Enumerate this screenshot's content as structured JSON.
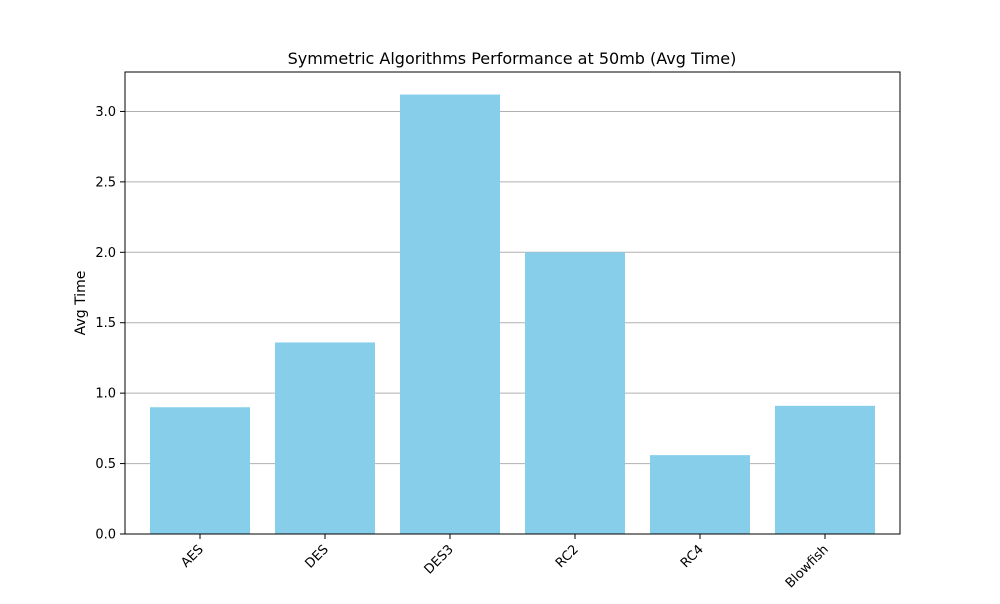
{
  "chart_data": {
    "type": "bar",
    "title": "Symmetric Algorithms Performance at 50mb (Avg Time)",
    "xlabel": "",
    "ylabel": "Avg Time",
    "categories": [
      "AES",
      "DES",
      "DES3",
      "RC2",
      "RC4",
      "Blowfish"
    ],
    "values": [
      0.9,
      1.36,
      3.12,
      2.0,
      0.56,
      0.91
    ],
    "ylim": [
      0,
      3.28
    ],
    "yticks": [
      0.0,
      0.5,
      1.0,
      1.5,
      2.0,
      2.5,
      3.0
    ],
    "ytick_labels": [
      "0.0",
      "0.5",
      "1.0",
      "1.5",
      "2.0",
      "2.5",
      "3.0"
    ],
    "grid": "horizontal",
    "xtick_rotation_deg": 45,
    "bar_color": "#87ceeb",
    "grid_color": "#b0b0b0",
    "axis_color": "#000000"
  }
}
